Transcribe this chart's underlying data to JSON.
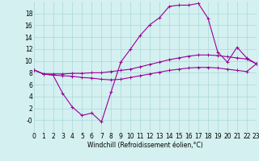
{
  "xlabel": "Windchill (Refroidissement éolien,°C)",
  "background_color": "#d4f0f0",
  "grid_color": "#aad8d8",
  "line_color": "#990099",
  "x": [
    0,
    1,
    2,
    3,
    4,
    5,
    6,
    7,
    8,
    9,
    10,
    11,
    12,
    13,
    14,
    15,
    16,
    17,
    18,
    19,
    20,
    21,
    22,
    23
  ],
  "line1": [
    8.5,
    7.8,
    7.6,
    4.5,
    2.2,
    0.8,
    1.2,
    -0.3,
    4.8,
    9.8,
    12.0,
    14.3,
    16.1,
    17.3,
    19.2,
    19.4,
    19.4,
    19.7,
    17.2,
    11.5,
    9.8,
    12.3,
    10.5,
    9.5
  ],
  "line2": [
    8.5,
    7.8,
    7.8,
    7.8,
    7.9,
    7.9,
    8.0,
    8.0,
    8.2,
    8.4,
    8.6,
    9.0,
    9.4,
    9.8,
    10.2,
    10.5,
    10.8,
    11.0,
    11.0,
    10.9,
    10.7,
    10.5,
    10.3,
    9.5
  ],
  "line3": [
    8.5,
    7.8,
    7.6,
    7.5,
    7.4,
    7.2,
    7.1,
    6.9,
    6.8,
    6.9,
    7.2,
    7.5,
    7.8,
    8.1,
    8.4,
    8.6,
    8.8,
    8.9,
    8.9,
    8.8,
    8.6,
    8.4,
    8.2,
    9.5
  ],
  "ylim": [
    -2,
    20
  ],
  "xlim": [
    0,
    23
  ],
  "yticks": [
    0,
    2,
    4,
    6,
    8,
    10,
    12,
    14,
    16,
    18
  ],
  "ytick_labels": [
    "-0",
    "2",
    "4",
    "6",
    "8",
    "10",
    "12",
    "14",
    "16",
    "18"
  ],
  "xticks": [
    0,
    1,
    2,
    3,
    4,
    5,
    6,
    7,
    8,
    9,
    10,
    11,
    12,
    13,
    14,
    15,
    16,
    17,
    18,
    19,
    20,
    21,
    22,
    23
  ],
  "marker": "+",
  "marker_size": 3,
  "linewidth": 0.8,
  "tick_fontsize": 5.5,
  "xlabel_fontsize": 5.5
}
